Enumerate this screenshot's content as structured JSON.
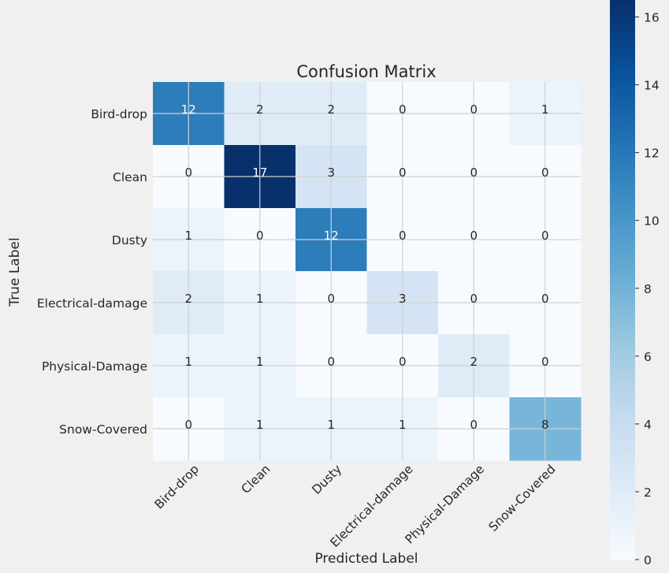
{
  "chart_data": {
    "type": "heatmap",
    "title": "Confusion Matrix",
    "xlabel": "Predicted Label",
    "ylabel": "True Label",
    "x_categories": [
      "Bird-drop",
      "Clean",
      "Dusty",
      "Electrical-damage",
      "Physical-Damage",
      "Snow-Covered"
    ],
    "y_categories": [
      "Bird-drop",
      "Clean",
      "Dusty",
      "Electrical-damage",
      "Physical-Damage",
      "Snow-Covered"
    ],
    "values": [
      [
        12,
        2,
        2,
        0,
        0,
        1
      ],
      [
        0,
        17,
        3,
        0,
        0,
        0
      ],
      [
        1,
        0,
        12,
        0,
        0,
        0
      ],
      [
        2,
        1,
        0,
        3,
        0,
        0
      ],
      [
        1,
        1,
        0,
        0,
        2,
        0
      ],
      [
        0,
        1,
        1,
        1,
        0,
        8
      ]
    ],
    "colormap": "Blues",
    "colorbar": {
      "range": [
        0,
        16.5
      ],
      "ticks": [
        0,
        2,
        4,
        6,
        8,
        10,
        12,
        14,
        16
      ]
    },
    "grid": true
  }
}
